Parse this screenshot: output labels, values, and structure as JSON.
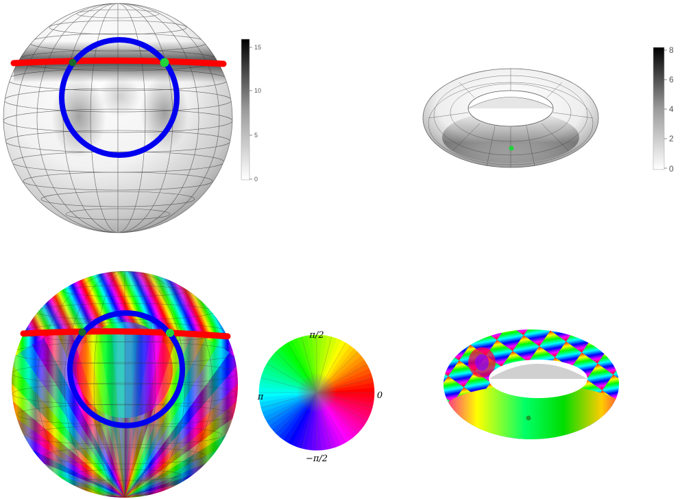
{
  "panels": {
    "sphere_magnitude": {
      "colorbar": {
        "ticks": [
          "0",
          "5",
          "10",
          "15"
        ],
        "colors": {
          "low": "#ffffff",
          "high": "#000000"
        }
      }
    },
    "torus_magnitude": {
      "colorbar": {
        "ticks": [
          "0",
          "2",
          "4",
          "6",
          "8"
        ],
        "colors": {
          "low": "#ffffff",
          "high": "#000000"
        }
      }
    },
    "phase_wheel": {
      "labels": {
        "top": "π/2",
        "left": "π",
        "right": "0",
        "bottom": "−π/2"
      }
    }
  },
  "colors": {
    "great_circle_red": "#ff0000",
    "small_circle_blue": "#0000ee",
    "points_green": "#1fd33a",
    "points_dark_green": "#1c6b28"
  },
  "icons": [
    "sphere-plot",
    "torus-plot",
    "colorbar-gradient",
    "phase-color-wheel"
  ]
}
